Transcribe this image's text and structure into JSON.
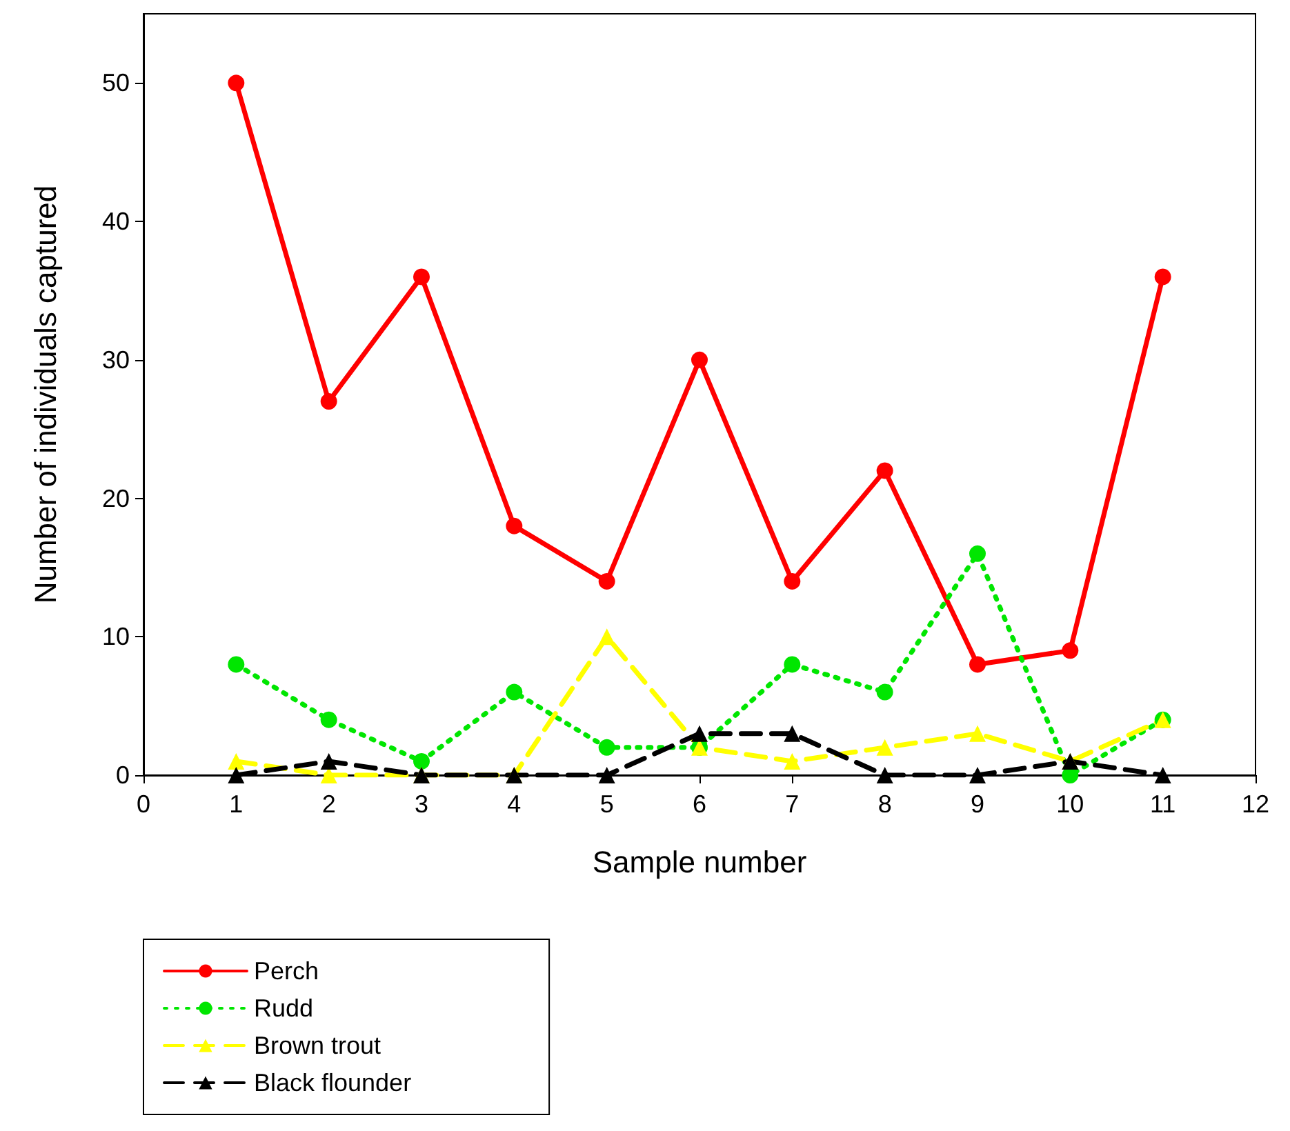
{
  "chart_data": {
    "type": "line",
    "xlabel": "Sample number",
    "ylabel": "Number of individuals captured",
    "x": [
      1,
      2,
      3,
      4,
      5,
      6,
      7,
      8,
      9,
      10,
      11
    ],
    "xlim": [
      0,
      12
    ],
    "xticks": [
      0,
      1,
      2,
      3,
      4,
      5,
      6,
      7,
      8,
      9,
      10,
      11,
      12
    ],
    "ylim": [
      0,
      55
    ],
    "yticks": [
      0,
      10,
      20,
      30,
      40,
      50
    ],
    "grid": false,
    "legend": "bottom left",
    "series": [
      {
        "name": "Perch",
        "color": "#ff0000",
        "marker": "circle",
        "line_style": "solid",
        "values": [
          50,
          27,
          36,
          18,
          14,
          30,
          14,
          22,
          8,
          9,
          36
        ]
      },
      {
        "name": "Rudd",
        "color": "#00e600",
        "marker": "circle",
        "line_style": "dotted",
        "values": [
          8,
          4,
          1,
          6,
          2,
          2,
          8,
          6,
          16,
          0,
          4
        ]
      },
      {
        "name": "Brown trout",
        "color": "#ffff00",
        "marker": "triangle",
        "line_style": "dashed",
        "values": [
          1,
          0,
          0,
          0,
          10,
          2,
          1,
          2,
          3,
          1,
          4
        ]
      },
      {
        "name": "Black flounder",
        "color": "#000000",
        "marker": "triangle",
        "line_style": "dashed",
        "values": [
          0,
          1,
          0,
          0,
          0,
          3,
          3,
          0,
          0,
          1,
          0
        ]
      }
    ]
  }
}
